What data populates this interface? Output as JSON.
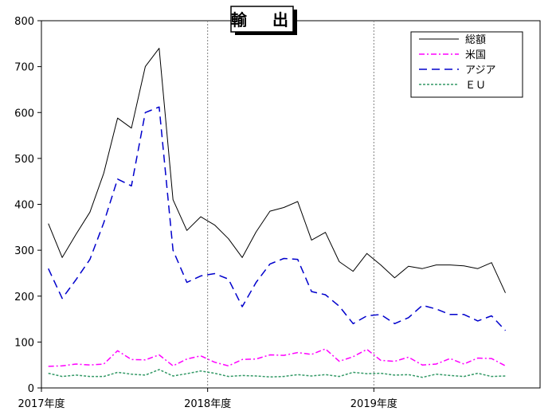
{
  "chart_data": {
    "type": "line",
    "title": "輸　出",
    "xlabel": "",
    "ylabel": "",
    "ylim": [
      0,
      800
    ],
    "yticks": [
      0,
      100,
      200,
      300,
      400,
      500,
      600,
      700,
      800
    ],
    "xticks": [
      {
        "index": 0,
        "label": "2017年度"
      },
      {
        "index": 12,
        "label": "2018年度"
      },
      {
        "index": 24,
        "label": "2019年度"
      }
    ],
    "n_points": 36,
    "grid": "vertical dotted at fiscal year boundaries",
    "legend_position": "top-right",
    "series": [
      {
        "name": "総額",
        "color": "#000000",
        "style": "solid",
        "values": [
          358,
          284,
          335,
          383,
          468,
          588,
          566,
          700,
          740,
          410,
          343,
          373,
          355,
          325,
          284,
          340,
          385,
          393,
          406,
          322,
          339,
          275,
          254,
          293,
          268,
          240,
          265,
          260,
          268,
          268,
          266,
          260,
          273,
          207
        ]
      },
      {
        "name": "米国",
        "color": "#ff00ff",
        "style": "dashdot",
        "values": [
          47,
          48,
          52,
          50,
          52,
          81,
          62,
          61,
          72,
          48,
          63,
          70,
          56,
          48,
          62,
          63,
          72,
          71,
          77,
          73,
          85,
          58,
          68,
          84,
          60,
          58,
          67,
          50,
          52,
          64,
          52,
          65,
          64,
          48
        ]
      },
      {
        "name": "アジア",
        "color": "#0000cc",
        "style": "dashed",
        "values": [
          260,
          195,
          236,
          280,
          360,
          455,
          440,
          600,
          612,
          300,
          230,
          244,
          249,
          237,
          177,
          230,
          270,
          282,
          280,
          210,
          203,
          178,
          140,
          157,
          160,
          140,
          153,
          180,
          172,
          160,
          160,
          146,
          157,
          125
        ]
      },
      {
        "name": "ＥＵ",
        "color": "#339966",
        "style": "dotted",
        "values": [
          32,
          25,
          28,
          25,
          25,
          34,
          30,
          28,
          40,
          26,
          31,
          37,
          32,
          25,
          27,
          26,
          24,
          25,
          29,
          26,
          29,
          25,
          34,
          31,
          32,
          28,
          29,
          23,
          30,
          27,
          25,
          32,
          25,
          26
        ]
      }
    ]
  }
}
